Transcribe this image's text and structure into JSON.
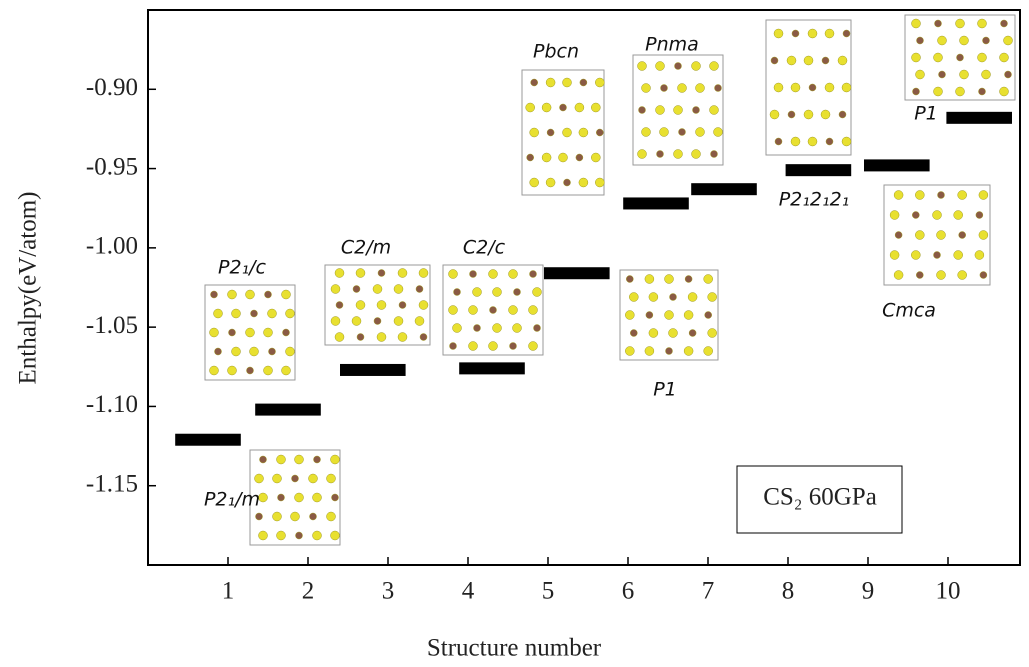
{
  "chart_data": {
    "type": "level",
    "x_label": "Structure number",
    "y_label": "Enthalpy(eV/atom)",
    "x": [
      0.75,
      1.75,
      2.81,
      4.3,
      5.36,
      6.35,
      7.2,
      8.38,
      9.36,
      10.39
    ],
    "values": [
      -1.121,
      -1.102,
      -1.077,
      -1.076,
      -1.016,
      -0.972,
      -0.963,
      -0.951,
      -0.948,
      -0.918
    ],
    "color": "#000000",
    "xlim": [
      0,
      10.9
    ],
    "xticks": [
      1,
      2,
      3,
      4,
      5,
      6,
      7,
      8,
      9,
      10
    ],
    "ylim": [
      -1.2,
      -0.85
    ],
    "yticks": [
      {
        "value": -0.9,
        "label": "-0.90"
      },
      {
        "value": -0.95,
        "label": "-0.95"
      },
      {
        "value": -1.0,
        "label": "-1.00"
      },
      {
        "value": -1.05,
        "label": "-1.05"
      },
      {
        "value": -1.1,
        "label": "-1.10"
      },
      {
        "value": -1.15,
        "label": "-1.15"
      }
    ],
    "annotations": [
      "P2₁/c",
      "C2/m",
      "C2/c",
      "Pbcn",
      "Pnma",
      "P2₁2₁2₁",
      "P1",
      "Cmca",
      "P1",
      "P2₁/m"
    ],
    "legend_text": "CS₂ 60GPa"
  }
}
